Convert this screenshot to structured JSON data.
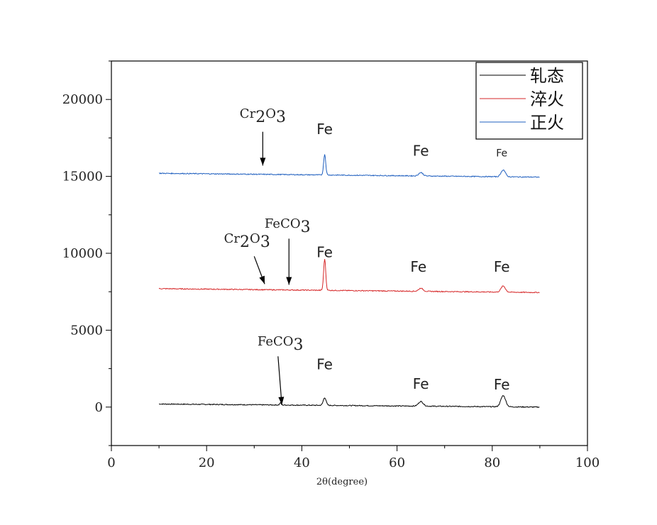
{
  "chart_data": {
    "type": "line",
    "xlabel": "2θ(degree)",
    "ylabel": "",
    "xlim": [
      0,
      100
    ],
    "ylim": [
      -2500,
      22500
    ],
    "xticks": [
      0,
      20,
      40,
      60,
      80,
      100
    ],
    "yticks": [
      0,
      5000,
      10000,
      15000,
      20000
    ],
    "xtick_labels": [
      "0",
      "20",
      "40",
      "60",
      "80",
      "100"
    ],
    "ytick_labels": [
      "0",
      "5000",
      "10000",
      "15000",
      "20000"
    ],
    "grid": false,
    "legend_position": "top-right",
    "series": [
      {
        "name": "轧态",
        "color": "#000000",
        "baseline_start": 200,
        "baseline_end": 0,
        "x": [
          10,
          30,
          35.5,
          44.8,
          65,
          82.3,
          90
        ],
        "y": [
          200,
          100,
          110,
          500,
          290,
          750,
          0
        ],
        "peaks": [
          [
            35.5,
            150,
            0.15
          ],
          [
            44.8,
            500,
            0.3
          ],
          [
            65,
            300,
            0.5
          ],
          [
            82.3,
            730,
            0.5
          ]
        ]
      },
      {
        "name": "淬火",
        "color": "#d62728",
        "baseline_start": 7700,
        "baseline_end": 7450,
        "x": [
          10,
          30,
          44.8,
          65,
          82.3,
          90
        ],
        "y": [
          7700,
          7550,
          9550,
          7680,
          7850,
          7450
        ],
        "peaks": [
          [
            44.8,
            2050,
            0.22
          ],
          [
            65,
            200,
            0.45
          ],
          [
            82.3,
            400,
            0.45
          ]
        ]
      },
      {
        "name": "正火",
        "color": "#1f5fbf",
        "baseline_start": 15200,
        "baseline_end": 14950,
        "x": [
          10,
          30,
          44.8,
          65,
          82.3,
          90
        ],
        "y": [
          15200,
          15050,
          16400,
          15200,
          15400,
          14950
        ],
        "peaks": [
          [
            44.8,
            1350,
            0.22
          ],
          [
            65,
            220,
            0.45
          ],
          [
            82.3,
            450,
            0.45
          ]
        ]
      }
    ],
    "annotations": [
      {
        "label": "Fe",
        "x": 44.8,
        "y": 17750,
        "size": "large"
      },
      {
        "label": "Fe",
        "x": 65,
        "y": 16350,
        "size": "large"
      },
      {
        "label": "Fe",
        "x": 82,
        "y": 16300,
        "size": "small"
      },
      {
        "label": "Fe",
        "x": 44.8,
        "y": 9750,
        "size": "large"
      },
      {
        "label": "Fe",
        "x": 64.5,
        "y": 8800,
        "size": "large"
      },
      {
        "label": "Fe",
        "x": 82,
        "y": 8800,
        "size": "large"
      },
      {
        "label": "Fe",
        "x": 44.8,
        "y": 2450,
        "size": "large"
      },
      {
        "label": "Fe",
        "x": 65,
        "y": 1200,
        "size": "large"
      },
      {
        "label": "Fe",
        "x": 82,
        "y": 1150,
        "size": "large"
      }
    ],
    "arrow_annotations": [
      {
        "base": "Cr",
        "sub1": "2",
        "mid": "O",
        "sub2": "3",
        "x_text": 31.8,
        "y_text": 18800,
        "x_from": 31.8,
        "y_from": 17900,
        "x_to": 31.8,
        "y_to": 15700
      },
      {
        "base": "Cr",
        "sub1": "2",
        "mid": "O",
        "sub2": "3",
        "x_text": 28.5,
        "y_text": 10700,
        "x_from": 30,
        "y_from": 9800,
        "x_to": 32.2,
        "y_to": 8000
      },
      {
        "base": "FeCO",
        "sub1": "",
        "mid": "",
        "sub2": "3",
        "x_text": 37,
        "y_text": 11650,
        "x_from": 37.3,
        "y_from": 10950,
        "x_to": 37.3,
        "y_to": 7950
      },
      {
        "base": "FeCO",
        "sub1": "",
        "mid": "",
        "sub2": "3",
        "x_text": 35.5,
        "y_text": 4000,
        "x_from": 35,
        "y_from": 3300,
        "x_to": 35.8,
        "y_to": 150
      }
    ]
  }
}
